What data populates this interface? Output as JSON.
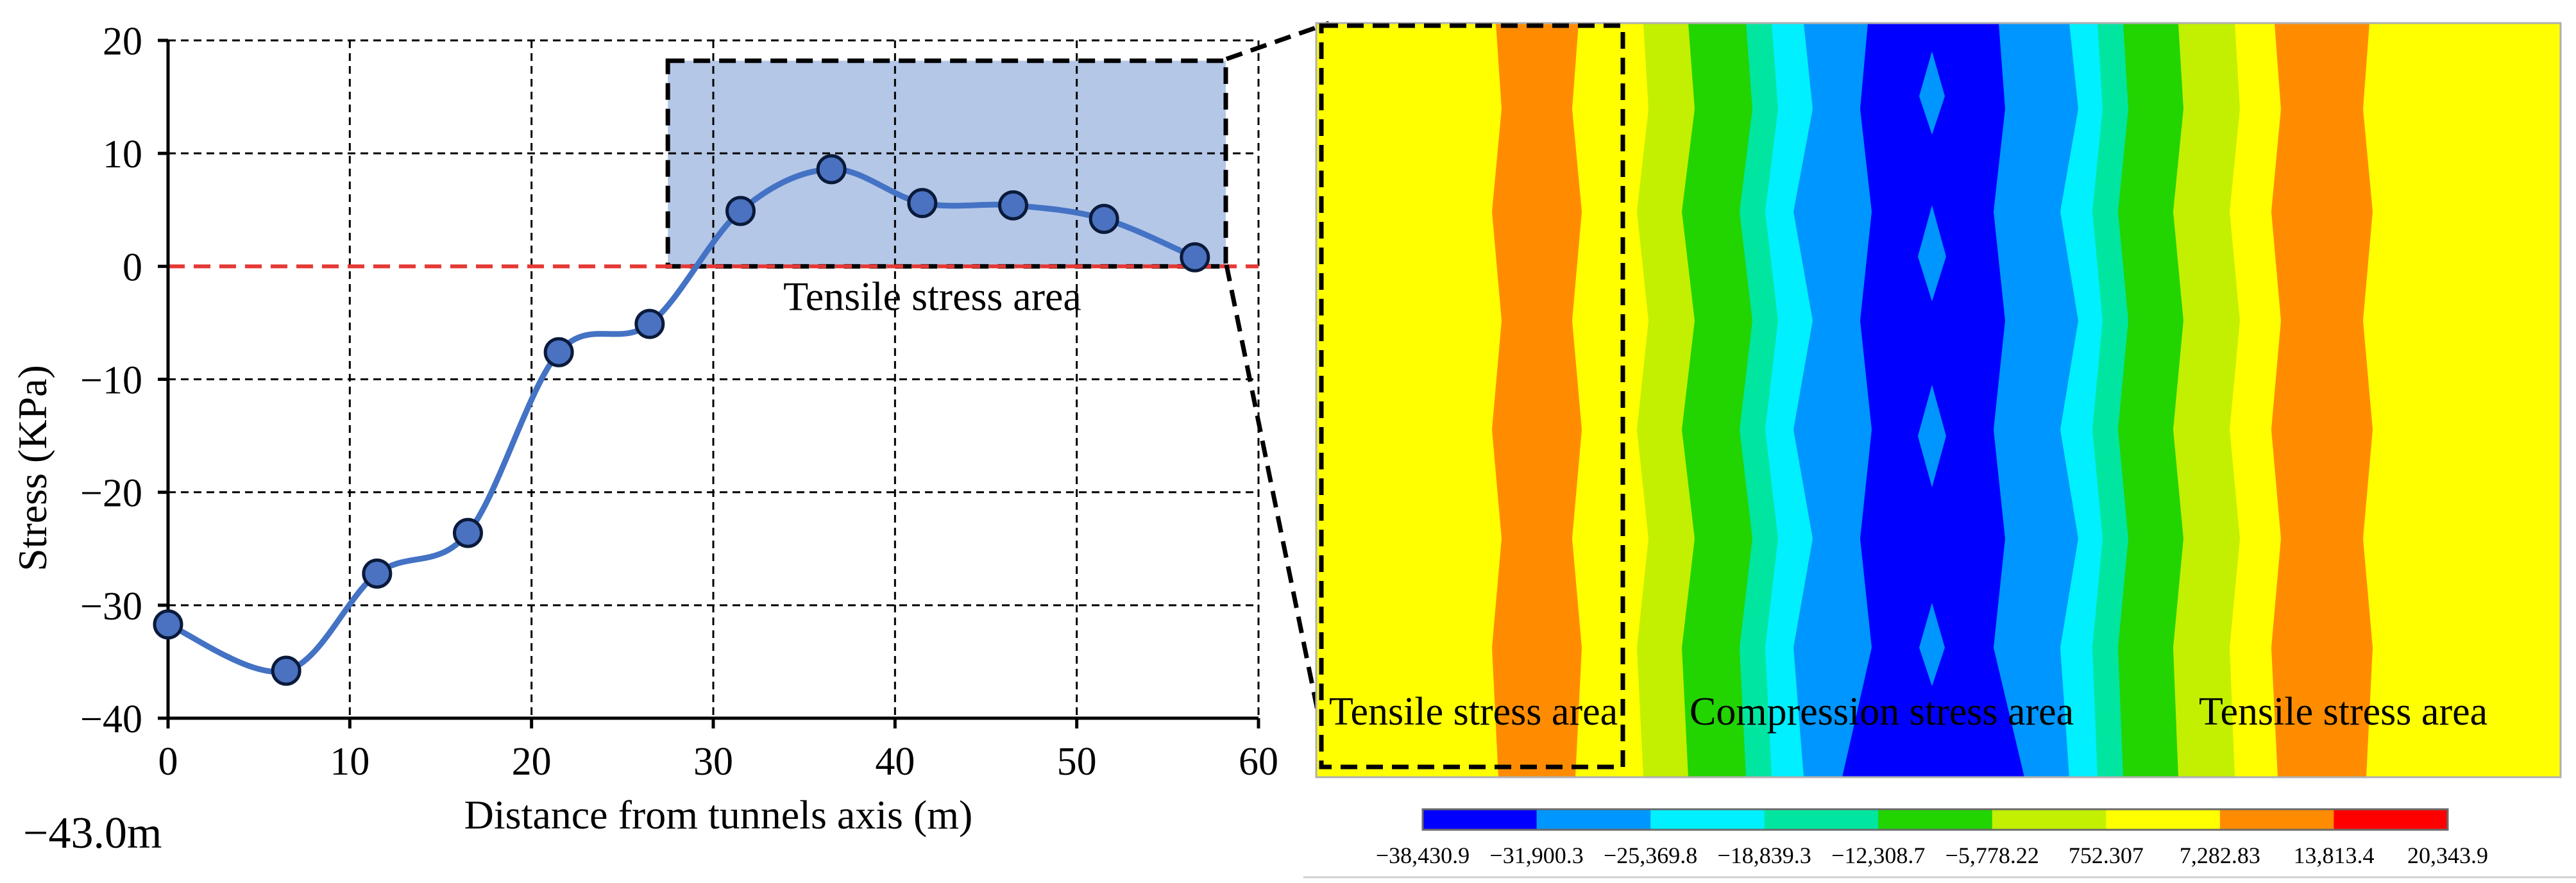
{
  "figure": {
    "depth_label": "−43.0m"
  },
  "chart_data": {
    "type": "line",
    "xlabel": "Distance from tunnels axis (m)",
    "ylabel": "Stress  (KPa)",
    "xlim": [
      0,
      60
    ],
    "ylim": [
      -40,
      20
    ],
    "x_ticks": [
      0,
      10,
      20,
      30,
      40,
      50,
      60
    ],
    "x_tick_labels": [
      "0",
      "10",
      "20",
      "30",
      "40",
      "50",
      "60"
    ],
    "y_ticks": [
      20,
      10,
      0,
      -10,
      -20,
      -30,
      -40
    ],
    "y_tick_labels": [
      "20",
      "10",
      "0",
      "−10",
      "−20",
      "−30",
      "−40"
    ],
    "grid": true,
    "zero_line": {
      "y": 0,
      "color": "#e53935",
      "style": "dashed"
    },
    "series": [
      {
        "name": "Stress",
        "color": "#4472c4",
        "marker_color": "#4a72c0",
        "x": [
          0,
          6.5,
          11.5,
          16.5,
          21.5,
          26.5,
          31.5,
          36.5,
          41.5,
          46.5,
          51.5,
          56.5
        ],
        "y": [
          -31.7,
          -35.8,
          -27.2,
          -23.6,
          -7.6,
          -5.1,
          4.9,
          8.6,
          5.6,
          5.4,
          4.2,
          0.8
        ]
      }
    ],
    "highlight": {
      "label": "Tensile stress area",
      "x_range": [
        27.5,
        58.2
      ],
      "y_range": [
        0,
        18.2
      ],
      "color": "#b4c7e7"
    }
  },
  "contour": {
    "bands": [
      {
        "name": "yellow-left",
        "color": "#ffff00"
      },
      {
        "name": "orange-left",
        "color": "#ff8c00"
      },
      {
        "name": "yellow-green-left",
        "color": "#c2f000"
      },
      {
        "name": "green-left",
        "color": "#22d400"
      },
      {
        "name": "teal-left",
        "color": "#00e6a0"
      },
      {
        "name": "cyan-left",
        "color": "#00f0ff"
      },
      {
        "name": "light-blue-left",
        "color": "#0096ff"
      },
      {
        "name": "dark-blue",
        "color": "#0000ff"
      },
      {
        "name": "light-blue-right",
        "color": "#0096ff"
      },
      {
        "name": "cyan-right",
        "color": "#00f0ff"
      },
      {
        "name": "teal-right",
        "color": "#00e6a0"
      },
      {
        "name": "green-right",
        "color": "#22d400"
      },
      {
        "name": "yellow-green-right",
        "color": "#c2f000"
      },
      {
        "name": "orange-right",
        "color": "#ff8c00"
      },
      {
        "name": "yellow-right",
        "color": "#ffff00"
      }
    ],
    "annotations": {
      "left": "Tensile stress area",
      "center": "Compression stress area",
      "right": "Tensile stress area"
    },
    "colorbar": {
      "colors": [
        "#0000ff",
        "#0096ff",
        "#00f0ff",
        "#00e6a0",
        "#22d400",
        "#c2f000",
        "#ffff00",
        "#ff8c00",
        "#ff0000"
      ],
      "labels": [
        "−38,430.9",
        "−31,900.3",
        "−25,369.8",
        "−18,839.3",
        "−12,308.7",
        "−5,778.22",
        "752.307",
        "7,282.83",
        "13,813.4",
        "20,343.9"
      ]
    }
  }
}
